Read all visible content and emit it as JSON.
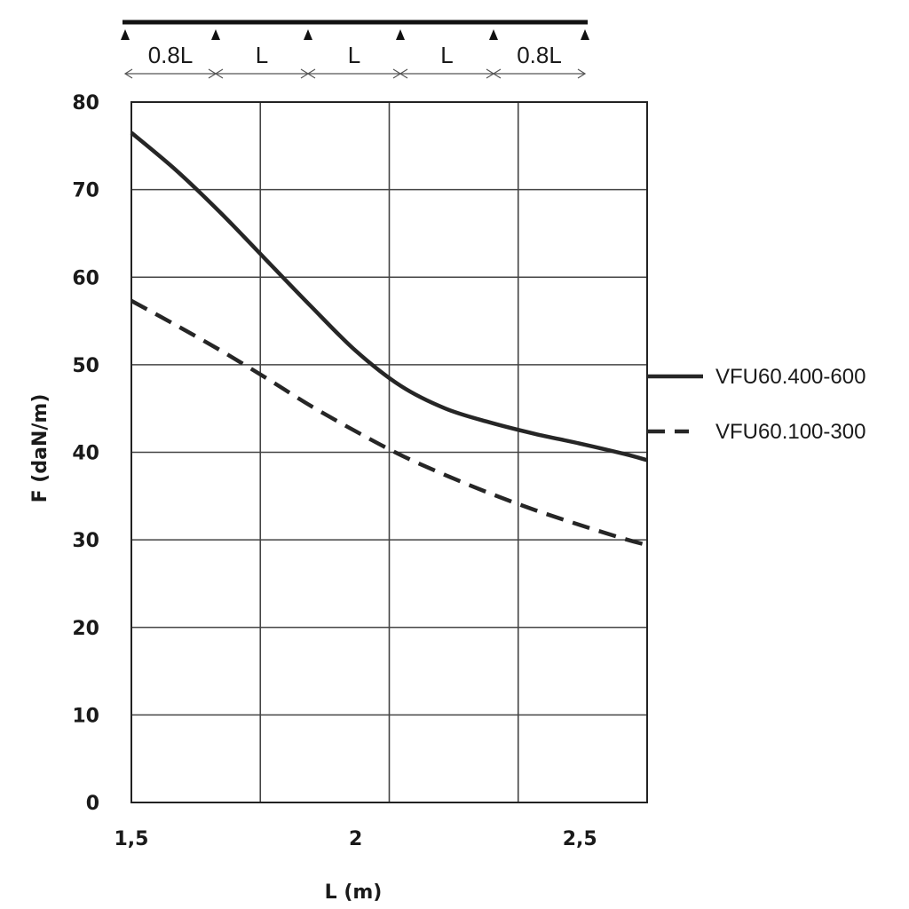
{
  "chart_data": {
    "type": "line",
    "title": "",
    "xlabel": "L (m)",
    "ylabel": "F (daN/m)",
    "xlim": [
      1.5,
      2.65
    ],
    "ylim": [
      0,
      80
    ],
    "x_ticks": [
      1.5,
      2,
      2.5
    ],
    "x_tick_labels": [
      "1,5",
      "2",
      "2,5"
    ],
    "y_ticks": [
      0,
      10,
      20,
      30,
      40,
      50,
      60,
      70,
      80
    ],
    "y_tick_labels": [
      "0",
      "10",
      "20",
      "30",
      "40",
      "50",
      "60",
      "70",
      "80"
    ],
    "grid": true,
    "legend": "right",
    "series": [
      {
        "name": "VFU60.400-600",
        "style": "solid",
        "x": [
          1.5,
          1.6,
          1.7,
          1.8,
          1.9,
          2.0,
          2.1,
          2.2,
          2.3,
          2.4,
          2.5,
          2.6,
          2.65
        ],
        "y": [
          76.5,
          72.2,
          67.3,
          62.0,
          56.7,
          51.6,
          47.6,
          45.0,
          43.4,
          42.1,
          41.0,
          39.8,
          39.1
        ]
      },
      {
        "name": "VFU60.100-300",
        "style": "dashed",
        "x": [
          1.5,
          1.6,
          1.7,
          1.8,
          1.9,
          2.0,
          2.1,
          2.2,
          2.3,
          2.4,
          2.5,
          2.6,
          2.65
        ],
        "y": [
          57.3,
          54.5,
          51.6,
          48.5,
          45.3,
          42.4,
          39.7,
          37.4,
          35.3,
          33.4,
          31.7,
          30.1,
          29.4
        ]
      }
    ],
    "span_diagram": {
      "labels": [
        "0.8L",
        "L",
        "L",
        "L",
        "0.8L"
      ]
    }
  }
}
